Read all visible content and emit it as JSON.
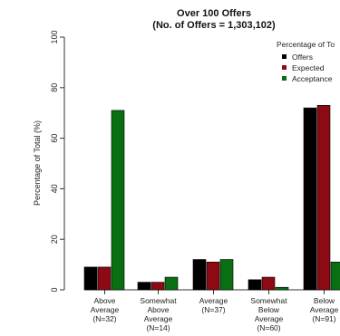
{
  "chart_data": {
    "type": "bar",
    "title": "Over 100 Offers",
    "subtitle": "(No. of Offers = 1,303,102)",
    "ylabel": "Percentage of Total (%)",
    "xlabel": "",
    "ylim": [
      0,
      100
    ],
    "yticks": [
      0,
      20,
      40,
      60,
      80,
      100
    ],
    "categories": [
      [
        "Above",
        "Average",
        "(N=32)"
      ],
      [
        "Somewhat",
        "Above",
        "Average",
        "(N=14)"
      ],
      [
        "Average",
        "(N=37)"
      ],
      [
        "Somewhat",
        "Below",
        "Average",
        "(N=60)"
      ],
      [
        "Below",
        "Average",
        "(N=91)"
      ]
    ],
    "legend_title": "Percentage of To",
    "legend_position": "top-right",
    "series": [
      {
        "name": "Offers",
        "color": "#000000",
        "values": [
          9,
          3,
          12,
          4,
          72
        ]
      },
      {
        "name": "Expected",
        "color": "#8b0a14",
        "values": [
          9,
          3,
          11,
          5,
          73
        ]
      },
      {
        "name": "Acceptance",
        "color": "#0a6e12",
        "values": [
          71,
          5,
          12,
          1,
          11
        ]
      }
    ]
  }
}
